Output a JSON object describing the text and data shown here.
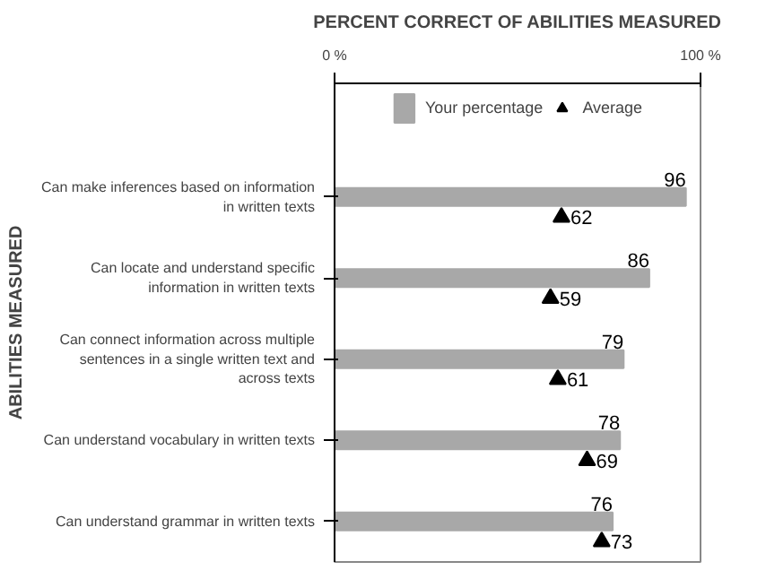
{
  "chart_data": {
    "type": "bar",
    "orientation": "horizontal",
    "title": "PERCENT CORRECT OF ABILITIES MEASURED",
    "ylabel": "ABILITIES MEASURED",
    "categories": [
      "Can make inferences based on information in written texts",
      "Can locate and understand specific information in written texts",
      "Can connect information across multiple sentences in a single written text and across texts",
      "Can understand vocabulary in written texts",
      "Can understand grammar in written texts"
    ],
    "series": [
      {
        "name": "Your percentage",
        "color": "#a8a8a8",
        "values": [
          96,
          86,
          79,
          78,
          76
        ]
      },
      {
        "name": "Average",
        "type": "scatter",
        "marker": "triangle",
        "color": "#000000",
        "values": [
          62,
          59,
          61,
          69,
          73
        ]
      }
    ],
    "xlim": [
      0,
      100
    ],
    "xticks": [
      {
        "value": 0,
        "label": "0 %"
      },
      {
        "value": 100,
        "label": "100 %"
      }
    ],
    "data_labels": true,
    "legend": "top",
    "grid": false
  }
}
